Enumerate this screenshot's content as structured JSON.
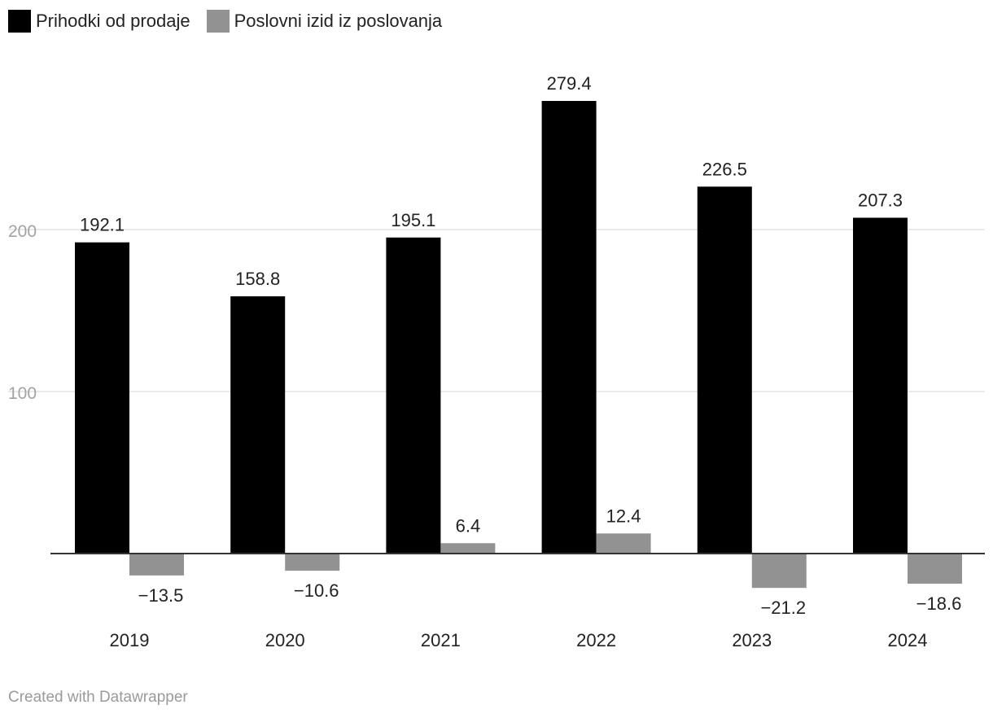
{
  "chart_data": {
    "type": "bar",
    "categories": [
      "2019",
      "2020",
      "2021",
      "2022",
      "2023",
      "2024"
    ],
    "series": [
      {
        "name": "Prihodki od prodaje",
        "color": "#000000",
        "values": [
          192.1,
          158.8,
          195.1,
          279.4,
          226.5,
          207.3
        ],
        "labels": [
          "192.1",
          "158.8",
          "195.1",
          "279.4",
          "226.5",
          "207.3"
        ]
      },
      {
        "name": "Poslovni izid iz poslovanja",
        "color": "#929292",
        "values": [
          -13.5,
          -10.6,
          6.4,
          12.4,
          -21.2,
          -18.6
        ],
        "labels": [
          "−13.5",
          "−10.6",
          "6.4",
          "12.4",
          "−21.2",
          "−18.6"
        ]
      }
    ],
    "y_ticks": [
      100,
      200
    ],
    "y_tick_labels": [
      "100",
      "200"
    ],
    "ylim": [
      -30,
      300
    ],
    "grid": true,
    "legend_position": "top-left"
  },
  "footer": {
    "credit": "Created with Datawrapper"
  }
}
